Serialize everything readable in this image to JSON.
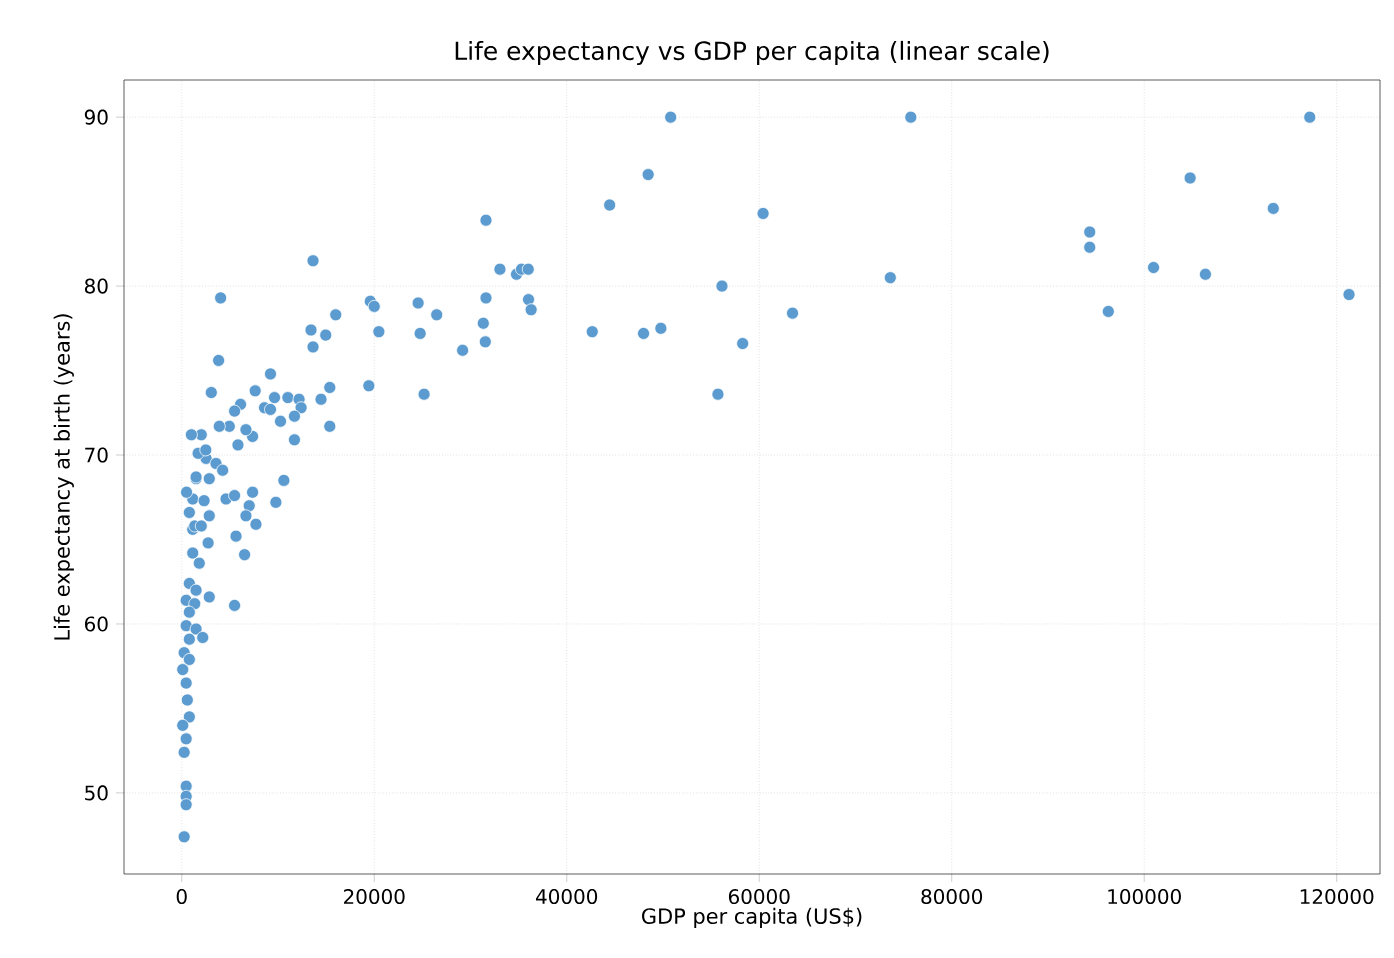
{
  "chart_data": {
    "type": "scatter",
    "title": "Life expectancy vs GDP per capita (linear scale)",
    "xlabel": "GDP per capita (US$)",
    "ylabel": "Life expectancy at birth (years)",
    "x": [
      50800,
      48460,
      44460,
      60400,
      56130,
      73620,
      75750,
      63460,
      47980,
      49780,
      58280,
      55710,
      42650,
      94340,
      94340,
      96270,
      100970,
      104770,
      106360,
      113410,
      117200,
      121280,
      31610,
      13640,
      4040,
      33060,
      34780,
      35300,
      36000,
      19590,
      20000,
      24560,
      26490,
      31610,
      36030,
      36300,
      16000,
      13430,
      14960,
      13640,
      20480,
      24770,
      31330,
      31540,
      29180,
      19440,
      25180,
      3830,
      3070,
      9220,
      7630,
      15380,
      14470,
      15380,
      11710,
      10610,
      9780,
      7710,
      8600,
      9640,
      11030,
      12190,
      12400,
      11710,
      10260,
      9220,
      6110,
      5490,
      4940,
      5840,
      7360,
      6670,
      3900,
      2030,
      2530,
      3560,
      4250,
      1490,
      2860,
      1140,
      2320,
      4600,
      5490,
      7360,
      7010,
      790,
      2860,
      6670,
      5640,
      1140,
      6530,
      5490,
      2860,
      1350,
      2030,
      2740,
      1140,
      1820,
      790,
      1490,
      460,
      1350,
      790,
      460,
      1490,
      2180,
      790,
      250,
      790,
      100,
      460,
      580,
      790,
      100,
      460,
      250,
      460,
      460,
      460,
      250,
      1490,
      1000,
      1700,
      500,
      2500
    ],
    "values": [
      90.0,
      86.6,
      84.8,
      84.3,
      80.0,
      80.5,
      90.0,
      78.4,
      77.2,
      77.5,
      76.6,
      73.6,
      77.3,
      83.2,
      82.3,
      78.5,
      81.1,
      86.4,
      80.7,
      84.6,
      90.0,
      79.5,
      83.9,
      81.5,
      79.3,
      81.0,
      80.7,
      81.0,
      81.0,
      79.1,
      78.8,
      79.0,
      78.3,
      79.3,
      79.2,
      78.6,
      78.3,
      77.4,
      77.1,
      76.4,
      77.3,
      77.2,
      77.8,
      76.7,
      76.2,
      74.1,
      73.6,
      75.6,
      73.7,
      74.8,
      73.8,
      74.0,
      73.3,
      71.7,
      70.9,
      68.5,
      67.2,
      65.9,
      72.8,
      73.4,
      73.4,
      73.3,
      72.8,
      72.3,
      72.0,
      72.7,
      73.0,
      72.6,
      71.7,
      70.6,
      71.1,
      71.5,
      71.7,
      71.2,
      69.8,
      69.5,
      69.1,
      68.6,
      68.6,
      67.4,
      67.3,
      67.4,
      67.6,
      67.8,
      67.0,
      66.6,
      66.4,
      66.4,
      65.2,
      65.6,
      64.1,
      61.1,
      61.6,
      65.8,
      65.8,
      64.8,
      64.2,
      63.6,
      62.4,
      62.0,
      61.4,
      61.2,
      60.7,
      59.9,
      59.7,
      59.2,
      59.1,
      58.3,
      57.9,
      57.3,
      56.5,
      55.5,
      54.5,
      54.0,
      53.2,
      52.4,
      50.4,
      49.8,
      49.3,
      47.4,
      68.7,
      71.2,
      70.1,
      67.8,
      70.3
    ],
    "color": "#5b9bcf",
    "marker": "circle",
    "grid": true,
    "xlim": [
      -6000,
      124500
    ],
    "ylim": [
      45.2,
      92.2
    ],
    "xticks": [
      0,
      20000,
      40000,
      60000,
      80000,
      100000,
      120000
    ],
    "yticks": [
      50,
      60,
      70,
      80,
      90
    ]
  }
}
